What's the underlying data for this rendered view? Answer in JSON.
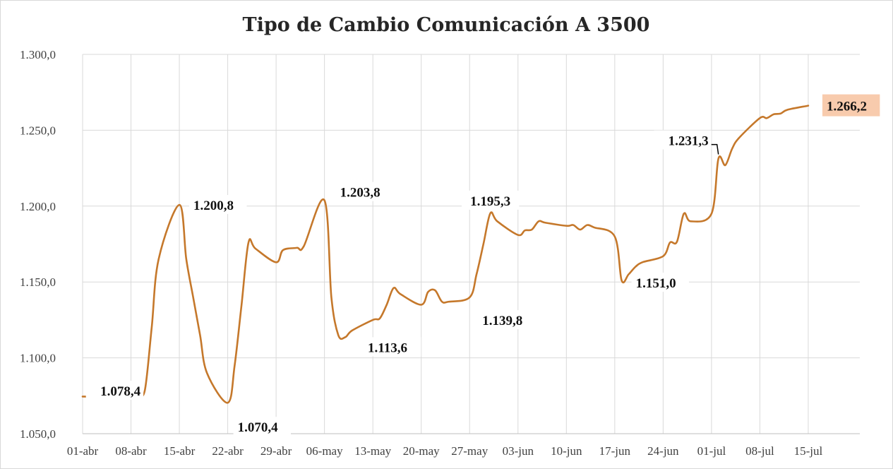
{
  "chart_data": {
    "type": "line",
    "title": "Tipo de Cambio Comunicación A 3500",
    "xlabel": "",
    "ylabel": "",
    "ylim": [
      1050,
      1300
    ],
    "y_ticks": [
      "1.050,0",
      "1.100,0",
      "1.150,0",
      "1.200,0",
      "1.250,0",
      "1.300,0"
    ],
    "x_ticks": [
      "01-abr",
      "08-abr",
      "15-abr",
      "22-abr",
      "29-abr",
      "06-may",
      "13-may",
      "20-may",
      "27-may",
      "03-jun",
      "10-jun",
      "17-jun",
      "24-jun",
      "01-jul",
      "08-jul",
      "15-jul"
    ],
    "grid": true,
    "line_color": "#c5782b",
    "highlight_color": "#f8cbad",
    "series": [
      {
        "x": [
          "2024-04-01",
          "2024-04-02",
          "2024-04-03",
          "2024-04-04",
          "2024-04-05",
          "2024-04-08",
          "2024-04-09",
          "2024-04-10",
          "2024-04-11",
          "2024-04-12",
          "2024-04-15",
          "2024-04-16",
          "2024-04-17",
          "2024-04-18",
          "2024-04-19",
          "2024-04-22",
          "2024-04-23",
          "2024-04-24",
          "2024-04-25",
          "2024-04-26",
          "2024-04-29",
          "2024-04-30",
          "2024-05-02",
          "2024-05-03",
          "2024-05-06",
          "2024-05-07",
          "2024-05-08",
          "2024-05-09",
          "2024-05-10",
          "2024-05-13",
          "2024-05-14",
          "2024-05-15",
          "2024-05-16",
          "2024-05-17",
          "2024-05-20",
          "2024-05-21",
          "2024-05-22",
          "2024-05-23",
          "2024-05-24",
          "2024-05-27",
          "2024-05-28",
          "2024-05-29",
          "2024-05-30",
          "2024-05-31",
          "2024-06-03",
          "2024-06-04",
          "2024-06-05",
          "2024-06-06",
          "2024-06-07",
          "2024-06-10",
          "2024-06-11",
          "2024-06-12",
          "2024-06-13",
          "2024-06-14",
          "2024-06-17",
          "2024-06-18",
          "2024-06-19",
          "2024-06-20",
          "2024-06-21",
          "2024-06-24",
          "2024-06-25",
          "2024-06-26",
          "2024-06-27",
          "2024-06-28",
          "2024-07-01",
          "2024-07-02",
          "2024-07-03",
          "2024-07-04",
          "2024-07-05",
          "2024-07-08",
          "2024-07-09",
          "2024-07-10",
          "2024-07-11",
          "2024-07-12",
          "2024-07-15"
        ],
        "y": [
          1074.5,
          1074.5,
          1075.5,
          1076.0,
          1076.0,
          1077.0,
          1077.0,
          1078.4,
          1120.0,
          1165.0,
          1200.8,
          1165.0,
          1140.0,
          1115.0,
          1090.0,
          1070.4,
          1095.0,
          1135.0,
          1176.0,
          1172.0,
          1163.0,
          1171.0,
          1172.5,
          1173.5,
          1203.8,
          1140.0,
          1115.0,
          1113.6,
          1118.0,
          1125.0,
          1126.0,
          1135.0,
          1146.0,
          1142.0,
          1135.0,
          1143.5,
          1144.5,
          1137.0,
          1137.0,
          1139.8,
          1155.0,
          1175.0,
          1195.3,
          1190.0,
          1181.0,
          1184.0,
          1184.5,
          1190.0,
          1189.0,
          1187.0,
          1187.5,
          1184.5,
          1187.5,
          1186.0,
          1180.0,
          1151.0,
          1155.0,
          1160.0,
          1163.0,
          1167.0,
          1176.0,
          1176.5,
          1195.0,
          1190.0,
          1195.0,
          1231.3,
          1227.0,
          1238.0,
          1245.0,
          1258.0,
          1258.0,
          1260.5,
          1261.0,
          1263.5,
          1266.2
        ],
        "data_labels": [
          {
            "index": 10,
            "text": "1.200,8"
          },
          {
            "index": 7,
            "text": "1.078,4"
          },
          {
            "index": 15,
            "text": "1.070,4"
          },
          {
            "index": 24,
            "text": "1.203,8"
          },
          {
            "index": 27,
            "text": "1.113,6"
          },
          {
            "index": 42,
            "text": "1.195,3"
          },
          {
            "index": 39,
            "text": "1.139,8"
          },
          {
            "index": 55,
            "text": "1.151,0"
          },
          {
            "index": 65,
            "text": "1.231,3"
          },
          {
            "index": 74,
            "text": "1.266,2",
            "highlight": true
          }
        ]
      }
    ]
  }
}
